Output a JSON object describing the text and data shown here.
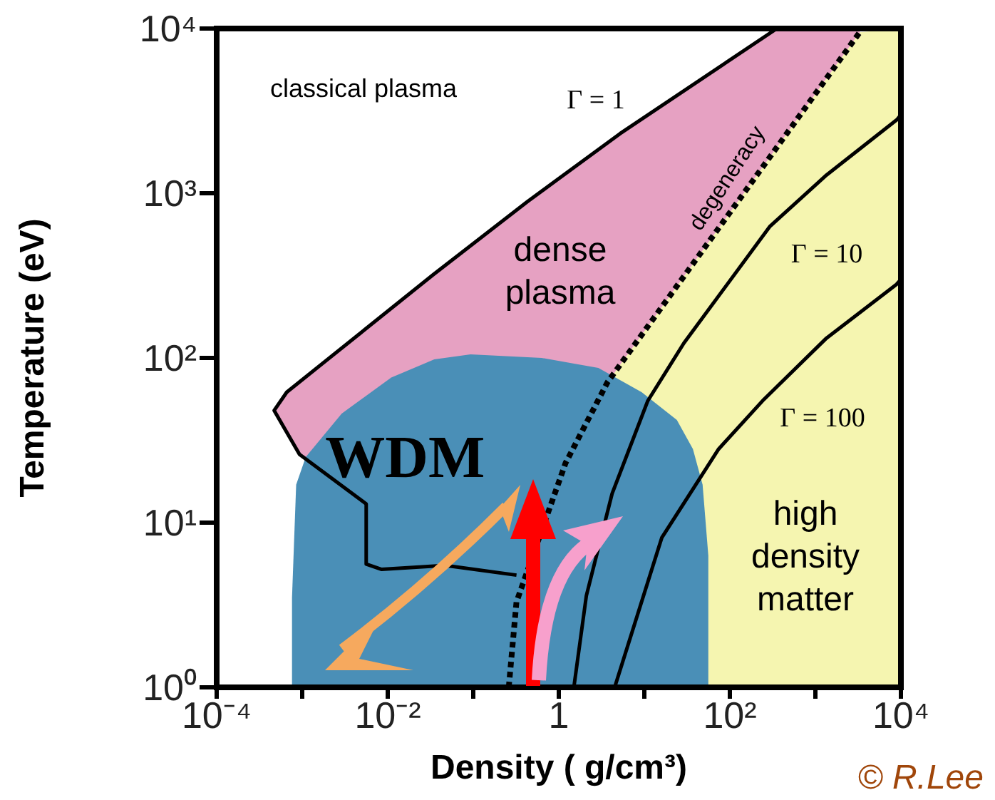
{
  "chart_data": {
    "type": "line",
    "xlabel": "Density ( g/cm³)",
    "ylabel": "Temperature (eV)",
    "log": "xy",
    "xlim": [
      0.0001,
      10000
    ],
    "ylim": [
      1,
      10000
    ],
    "xticks": [
      {
        "value": 0.0001,
        "label": "10⁻⁴"
      },
      {
        "value": 0.001,
        "label": null
      },
      {
        "value": 0.01,
        "label": "10⁻²"
      },
      {
        "value": 0.1,
        "label": null
      },
      {
        "value": 1,
        "label": "1"
      },
      {
        "value": 10,
        "label": null
      },
      {
        "value": 100,
        "label": "10²"
      },
      {
        "value": 1000,
        "label": null
      },
      {
        "value": 10000,
        "label": "10⁴"
      }
    ],
    "yticks": [
      {
        "value": 1,
        "label": "10⁰"
      },
      {
        "value": 10,
        "label": "10¹"
      },
      {
        "value": 100,
        "label": "10²"
      },
      {
        "value": 1000,
        "label": "10³"
      },
      {
        "value": 10000,
        "label": "10⁴"
      }
    ],
    "series": [
      {
        "type": "area",
        "color": "#4a8fb7",
        "x": [
          0.00076,
          0.00085,
          0.0011,
          0.0029,
          0.011,
          0.035,
          0.093,
          0.63,
          2.9,
          9.3,
          24,
          37,
          48,
          56
        ],
        "values": [
          3.5,
          17,
          25,
          46,
          76,
          98,
          105,
          100,
          87,
          62,
          42,
          28,
          17,
          6.3
        ]
      },
      {
        "color": "#000000",
        "x": [
          10000,
          9000,
          1350,
          295,
          29,
          11,
          4.2,
          2.1,
          1.5
        ],
        "values": [
          3000,
          2800,
          1290,
          630,
          123,
          55,
          15,
          3.6,
          1
        ]
      },
      {
        "color": "#000000",
        "x": [
          10000,
          8900,
          1350,
          250,
          74,
          16,
          4.5
        ],
        "values": [
          300,
          280,
          132,
          56,
          28,
          8.1,
          1
        ]
      },
      {
        "color": "#000000",
        "line_style": "dashed",
        "x": [
          0.26,
          0.32,
          1.2,
          3.7,
          105,
          3300
        ],
        "values": [
          1,
          3.3,
          23,
          71,
          790,
          9500
        ]
      },
      {
        "color": "#000000",
        "x": [
          0.32,
          0.047,
          0.0085,
          0.0056,
          0.0056,
          0.00093,
          0.00047,
          0.00066,
          0.034,
          0.43,
          5.2,
          355
        ],
        "values": [
          4.8,
          5.5,
          5.2,
          5.6,
          13,
          26,
          48,
          62,
          320,
          890,
          2300,
          10000
        ]
      }
    ],
    "annotations": [
      "classical plasma",
      "Γ = 1",
      "dense plasma",
      "degeneracy",
      "Γ = 10",
      "Γ = 100",
      {
        "text": "WDM",
        "x": 0.093,
        "y": 105
      },
      "high density matter",
      "© R.Lee"
    ]
  }
}
